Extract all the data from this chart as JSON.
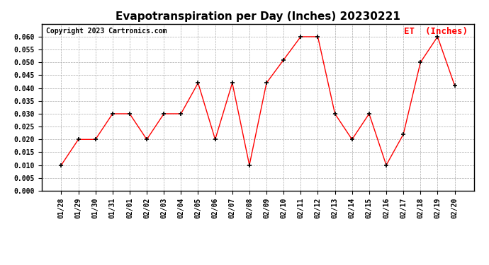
{
  "title": "Evapotranspiration per Day (Inches) 20230221",
  "copyright": "Copyright 2023 Cartronics.com",
  "legend_label": "ET  (Inches)",
  "dates": [
    "01/28",
    "01/29",
    "01/30",
    "01/31",
    "02/01",
    "02/02",
    "02/03",
    "02/04",
    "02/05",
    "02/06",
    "02/07",
    "02/08",
    "02/09",
    "02/10",
    "02/11",
    "02/12",
    "02/13",
    "02/14",
    "02/15",
    "02/16",
    "02/17",
    "02/18",
    "02/19",
    "02/20"
  ],
  "values": [
    0.01,
    0.02,
    0.02,
    0.03,
    0.03,
    0.02,
    0.03,
    0.03,
    0.042,
    0.02,
    0.042,
    0.01,
    0.042,
    0.051,
    0.06,
    0.06,
    0.03,
    0.02,
    0.03,
    0.01,
    0.022,
    0.05,
    0.06,
    0.041
  ],
  "line_color": "red",
  "marker_color": "black",
  "marker_style": "+",
  "bg_color": "#ffffff",
  "grid_color": "#aaaaaa",
  "ylim": [
    0.0,
    0.065
  ],
  "yticks": [
    0.0,
    0.005,
    0.01,
    0.015,
    0.02,
    0.025,
    0.03,
    0.035,
    0.04,
    0.045,
    0.05,
    0.055,
    0.06
  ],
  "title_fontsize": 11,
  "copyright_fontsize": 7,
  "legend_fontsize": 9,
  "tick_fontsize": 7,
  "border_color": "#000000"
}
